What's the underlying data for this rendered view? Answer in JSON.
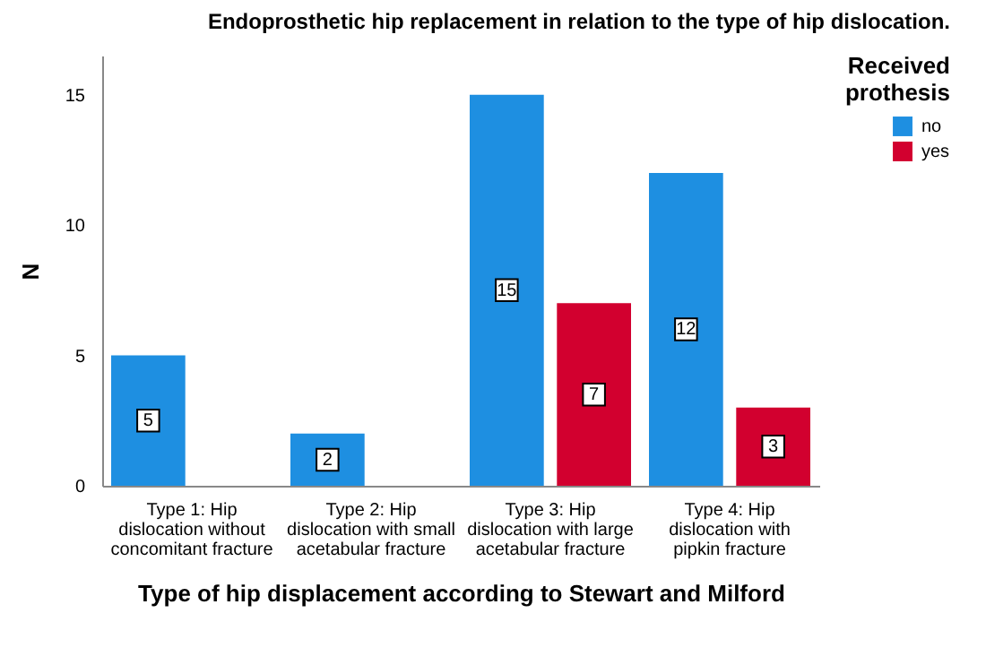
{
  "chart_data": {
    "type": "bar",
    "title": "Endoprosthetic hip replacement in relation to the type of hip dislocation.",
    "xlabel": "Type of hip displacement according to Stewart and Milford",
    "ylabel": "N",
    "legend_title": "Received prothesis",
    "categories": [
      "Type 1: Hip dislocation without concomitant fracture",
      "Type 2: Hip dislocation with small acetabular fracture",
      "Type 3: Hip dislocation  with large acetabular fracture",
      "Type 4: Hip dislocation with pipkin fracture"
    ],
    "series": [
      {
        "name": "no",
        "color": "#1e8fe1",
        "values": [
          5,
          2,
          15,
          12
        ]
      },
      {
        "name": "yes",
        "color": "#d2002f",
        "values": [
          null,
          null,
          7,
          3
        ]
      }
    ],
    "ylim": [
      0,
      16.5
    ],
    "yticks": [
      0,
      5,
      10,
      15
    ],
    "data_labels": true,
    "legend": "top right"
  }
}
